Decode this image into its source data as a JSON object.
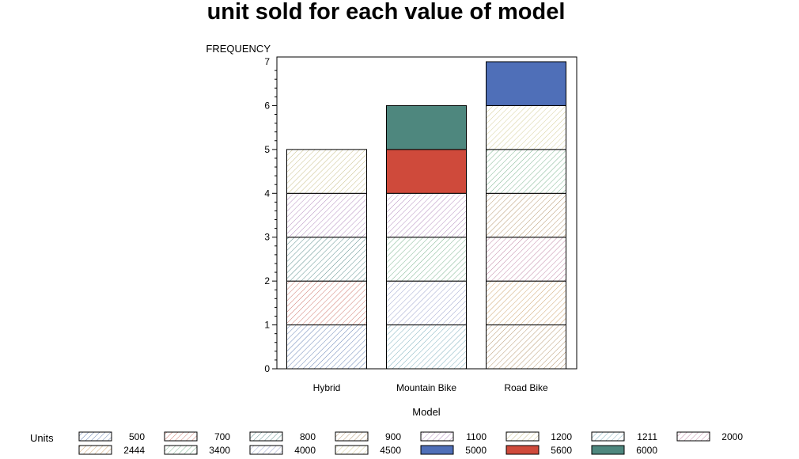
{
  "chart_data": {
    "type": "bar",
    "stacked": true,
    "title": "unit sold for each value of model",
    "xlabel": "Model",
    "ylabel": "FREQUENCY",
    "ylim": [
      0,
      7
    ],
    "yticks": [
      0,
      1,
      2,
      3,
      4,
      5,
      6,
      7
    ],
    "categories": [
      "Hybrid",
      "Mountain Bike",
      "Road Bike"
    ],
    "legend_title": "Units",
    "legend_position": "bottom",
    "grid": false,
    "series": [
      {
        "name": "500",
        "color": "#6b86b8",
        "values": [
          1,
          0,
          0
        ]
      },
      {
        "name": "700",
        "color": "#d07a70",
        "values": [
          1,
          0,
          0
        ]
      },
      {
        "name": "800",
        "color": "#5f9190",
        "values": [
          1,
          0,
          0
        ]
      },
      {
        "name": "900",
        "color": "#b99a73",
        "values": [
          0,
          0,
          0
        ]
      },
      {
        "name": "1100",
        "color": "#b58fc0",
        "values": [
          1,
          1,
          0
        ]
      },
      {
        "name": "1200",
        "color": "#c9c08a",
        "values": [
          1,
          0,
          0
        ]
      },
      {
        "name": "1211",
        "color": "#7fb1bf",
        "values": [
          0,
          1,
          0
        ]
      },
      {
        "name": "2000",
        "color": "#c28aa8",
        "values": [
          0,
          0,
          0
        ]
      },
      {
        "name": "2444",
        "color": "#cfa670",
        "values": [
          0,
          0,
          0
        ]
      },
      {
        "name": "3400",
        "color": "#7fb692",
        "values": [
          0,
          1,
          0
        ]
      },
      {
        "name": "4000",
        "color": "#9ea6cf",
        "values": [
          0,
          0,
          0
        ]
      },
      {
        "name": "4500",
        "color": "#d6cf9a",
        "values": [
          0,
          0,
          0
        ]
      },
      {
        "name": "5000",
        "color": "#4f6fb8",
        "values": [
          0,
          0,
          1
        ]
      },
      {
        "name": "5600",
        "color": "#cf4a3b",
        "values": [
          0,
          1,
          0
        ]
      },
      {
        "name": "6000",
        "color": "#4e877e",
        "values": [
          0,
          1,
          0
        ]
      }
    ],
    "stacks": [
      [
        "500",
        "700",
        "800",
        "1100",
        "1200"
      ],
      [
        "1211",
        "4000",
        "3400",
        "1100",
        "5600",
        "6000"
      ],
      [
        "900",
        "2444",
        "2000",
        "900",
        "3400",
        "4500",
        "5000"
      ]
    ]
  }
}
